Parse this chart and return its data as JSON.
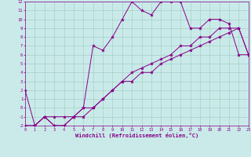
{
  "xlabel": "Windchill (Refroidissement éolien,°C)",
  "xlim": [
    0,
    23
  ],
  "ylim": [
    -2,
    12
  ],
  "xticks": [
    0,
    1,
    2,
    3,
    4,
    5,
    6,
    7,
    8,
    9,
    10,
    11,
    12,
    13,
    14,
    15,
    16,
    17,
    18,
    19,
    20,
    21,
    22,
    23
  ],
  "yticks": [
    -2,
    -1,
    0,
    1,
    2,
    3,
    4,
    5,
    6,
    7,
    8,
    9,
    10,
    11,
    12
  ],
  "bg_color": "#caeaea",
  "line_color": "#880088",
  "grid_color": "#99ccbb",
  "line1_x": [
    0,
    1,
    2,
    3,
    4,
    5,
    6,
    7,
    8,
    9,
    10,
    11,
    12,
    13,
    14,
    15,
    16,
    17,
    18,
    19,
    20,
    21,
    22,
    23
  ],
  "line1_y": [
    2,
    -2,
    -1,
    -1,
    -1,
    -1,
    0,
    7,
    6.5,
    8,
    10,
    12,
    11,
    10.5,
    12,
    12,
    12,
    9,
    9,
    10,
    10,
    9.5,
    6,
    6
  ],
  "line2_x": [
    0,
    1,
    2,
    3,
    4,
    5,
    6,
    7,
    8,
    9,
    10,
    11,
    12,
    13,
    14,
    15,
    16,
    17,
    18,
    19,
    20,
    21,
    22,
    23
  ],
  "line2_y": [
    -2,
    -2,
    -1,
    -2,
    -2,
    -1,
    -1,
    0,
    1,
    2,
    3,
    4,
    4.5,
    5,
    5.5,
    6,
    7,
    7,
    8,
    8,
    9,
    9,
    9,
    6
  ],
  "line3_x": [
    0,
    1,
    2,
    3,
    4,
    5,
    6,
    7,
    8,
    9,
    10,
    11,
    12,
    13,
    14,
    15,
    16,
    17,
    18,
    19,
    20,
    21,
    22,
    23
  ],
  "line3_y": [
    -2,
    -2,
    -1,
    -2,
    -2,
    -1,
    0,
    0,
    1,
    2,
    3,
    3,
    4,
    4,
    5,
    5.5,
    6,
    6.5,
    7,
    7.5,
    8,
    8.5,
    9,
    6
  ]
}
